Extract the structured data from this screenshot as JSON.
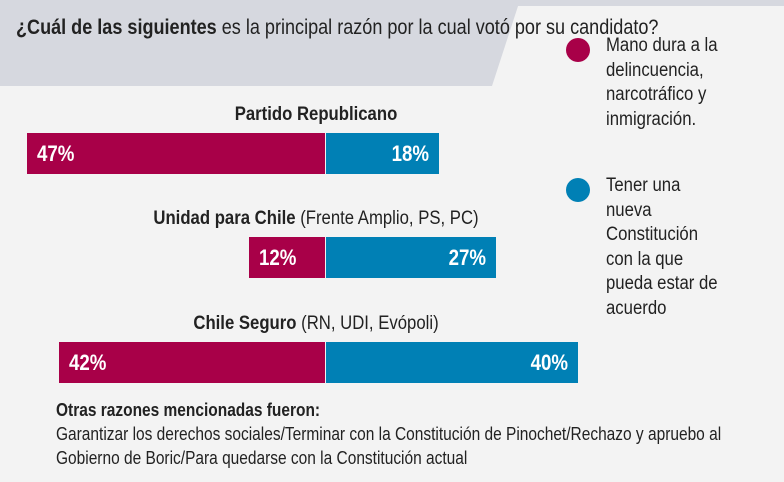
{
  "chart_data": {
    "type": "bar",
    "orientation": "horizontal-diverging",
    "title_bold": "¿Cuál de las siguientes",
    "title_rest": "es la principal razón por la cual votó por su candidato?",
    "categories": [
      {
        "name": "Partido Republicano",
        "detail": ""
      },
      {
        "name": "Unidad para Chile",
        "detail": "(Frente Amplio, PS, PC)"
      },
      {
        "name": "Chile Seguro",
        "detail": "(RN, UDI, Evópoli)"
      }
    ],
    "series": [
      {
        "name": "Mano dura a la delincuencia, narcotráfico y inmigración.",
        "color": "#a80048",
        "values": [
          47,
          12,
          42
        ],
        "labels": [
          "47%",
          "12%",
          "42%"
        ]
      },
      {
        "name": "Tener una nueva Constitución con la que pueda estar de acuerdo",
        "color": "#0080b5",
        "values": [
          18,
          27,
          40
        ],
        "labels": [
          "18%",
          "27%",
          "40%"
        ]
      }
    ],
    "legend": "right",
    "footnote_title": "Otras razones mencionadas fueron:",
    "footnote_text": "Garantizar los derechos sociales/Terminar con la Constitución de Pinochet/Rechazo y apruebo al Gobierno de Boric/Para quedarse con la Constitución actual"
  }
}
